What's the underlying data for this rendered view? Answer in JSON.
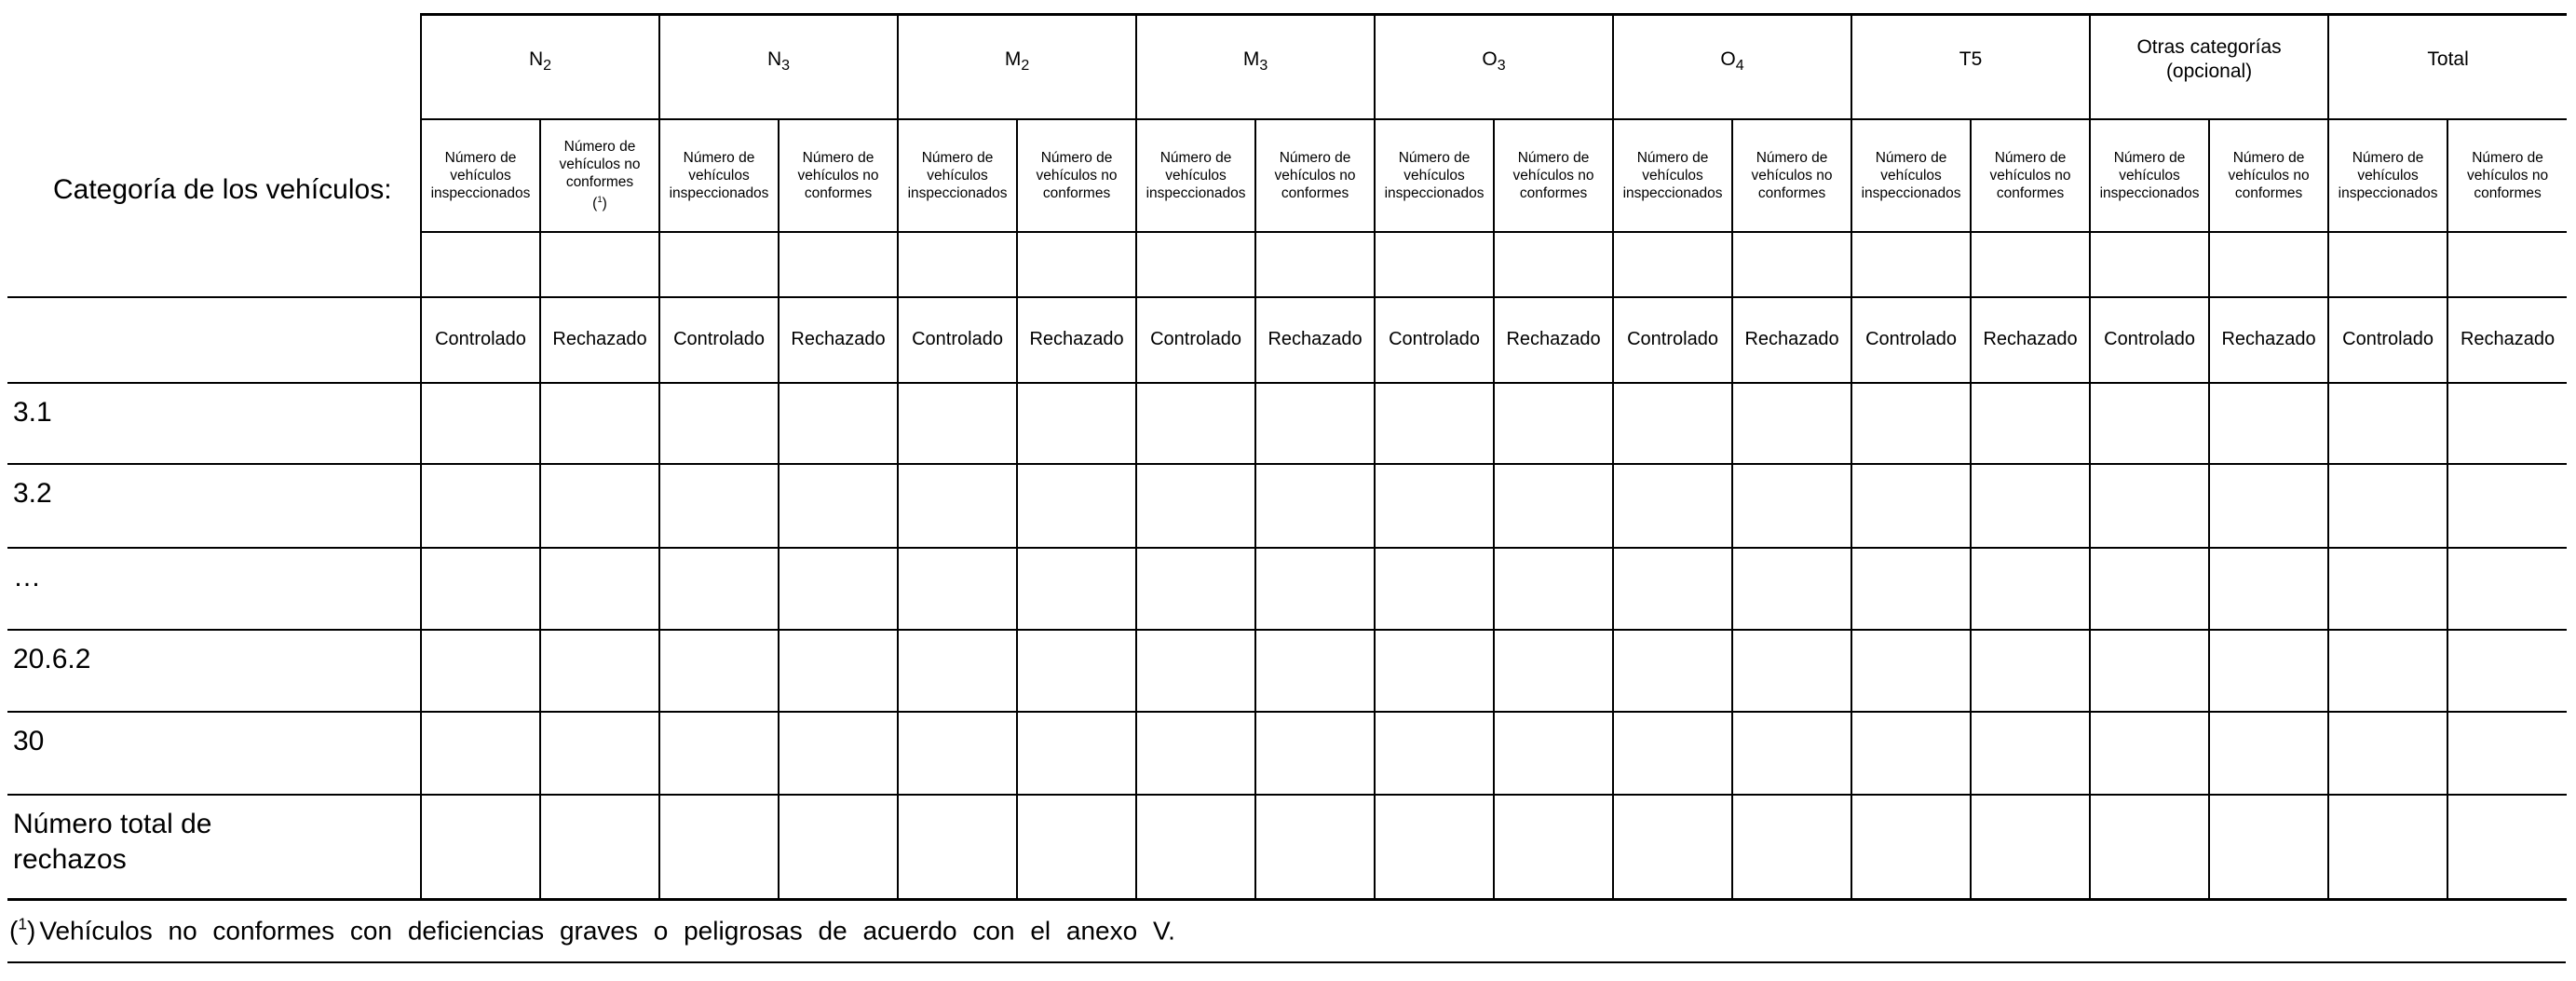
{
  "document": {
    "category_header": "Categoría de los vehículos:",
    "footnote_text": "Vehículos no conformes con deficiencias graves o peligrosas de acuerdo con el anexo V.",
    "fn_open": "(",
    "fn_num": "1",
    "fn_close": ")"
  },
  "table": {
    "groups": [
      {
        "label": "N",
        "sub": "2",
        "line2": ""
      },
      {
        "label": "N",
        "sub": "3",
        "line2": ""
      },
      {
        "label": "M",
        "sub": "2",
        "line2": ""
      },
      {
        "label": "M",
        "sub": "3",
        "line2": ""
      },
      {
        "label": "O",
        "sub": "3",
        "line2": ""
      },
      {
        "label": "O",
        "sub": "4",
        "line2": ""
      },
      {
        "label": "T5",
        "sub": "",
        "line2": ""
      },
      {
        "label": "Otras categorías",
        "sub": "",
        "line2": "(opcional)"
      },
      {
        "label": "Total",
        "sub": "",
        "line2": ""
      }
    ],
    "col_inspected": "Número de vehículos inspeccionados",
    "col_nonconforming": "Número de vehículos no conformes",
    "controlado": "Controlado",
    "rechazado": "Rechazado",
    "row_labels": [
      "3.1",
      "3.2",
      "…",
      "20.6.2",
      "30",
      "Número total de\nrechazos"
    ]
  }
}
